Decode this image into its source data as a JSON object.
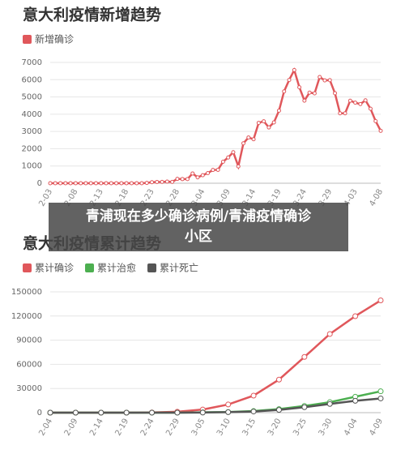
{
  "chart_data": [
    {
      "type": "line",
      "title": "意大利疫情新增趋势",
      "categories": [
        "2-03",
        null,
        null,
        null,
        null,
        "2-08",
        null,
        null,
        null,
        null,
        "2-13",
        null,
        null,
        null,
        null,
        "2-18",
        null,
        null,
        null,
        null,
        "2-23",
        null,
        null,
        null,
        null,
        "2-28",
        null,
        null,
        null,
        null,
        "3-04",
        null,
        null,
        null,
        null,
        "3-09",
        null,
        null,
        null,
        null,
        "3-14",
        null,
        null,
        null,
        null,
        "3-19",
        null,
        null,
        null,
        null,
        "3-24",
        null,
        null,
        null,
        null,
        "3-29",
        null,
        null,
        null,
        null,
        "4-03",
        null,
        null,
        null,
        null,
        "4-08"
      ],
      "series": [
        {
          "name": "新增确诊",
          "color": "#e0575b",
          "values": [
            0,
            0,
            0,
            0,
            0,
            0,
            0,
            0,
            0,
            0,
            0,
            0,
            0,
            0,
            0,
            0,
            0,
            0,
            0,
            16,
            60,
            73,
            76,
            93,
            78,
            250,
            238,
            240,
            566,
            342,
            466,
            587,
            769,
            778,
            1247,
            1492,
            1797,
            977,
            2313,
            2651,
            2547,
            3497,
            3590,
            3233,
            3526,
            4207,
            5322,
            5986,
            6557,
            5560,
            4789,
            5249,
            5210,
            6153,
            5959,
            5974,
            5217,
            4050,
            4053,
            4782,
            4668,
            4585,
            4805,
            4316,
            3599,
            3039
          ]
        }
      ],
      "ylim": [
        0,
        7000
      ],
      "yticks": [
        0,
        1000,
        2000,
        3000,
        4000,
        5000,
        6000,
        7000
      ],
      "grid": true
    },
    {
      "type": "line",
      "title": "意大利疫情累计趋势",
      "categories": [
        "2-04",
        "2-09",
        "2-14",
        "2-19",
        "2-24",
        "2-29",
        "3-05",
        "3-10",
        "3-15",
        "3-20",
        "3-25",
        "3-30",
        "4-04",
        "4-09"
      ],
      "series": [
        {
          "name": "累计确诊",
          "color": "#e0575b",
          "values": [
            0,
            0,
            0,
            0,
            229,
            1128,
            3858,
            10149,
            21157,
            41035,
            69176,
            97689,
            119827,
            139422
          ]
        },
        {
          "name": "累计治愈",
          "color": "#4caf50",
          "values": [
            0,
            0,
            0,
            0,
            1,
            46,
            414,
            724,
            1966,
            4440,
            8326,
            13030,
            19758,
            26491
          ]
        },
        {
          "name": "累计死亡",
          "color": "#555555",
          "values": [
            0,
            0,
            0,
            0,
            7,
            29,
            148,
            631,
            1441,
            3405,
            6820,
            10779,
            14681,
            17669
          ]
        }
      ],
      "ylim": [
        0,
        150000
      ],
      "yticks": [
        0,
        30000,
        60000,
        90000,
        120000,
        150000
      ],
      "grid": true
    }
  ],
  "overlay_text": "青浦现在多少确诊病例/青浦疫情确诊小区"
}
